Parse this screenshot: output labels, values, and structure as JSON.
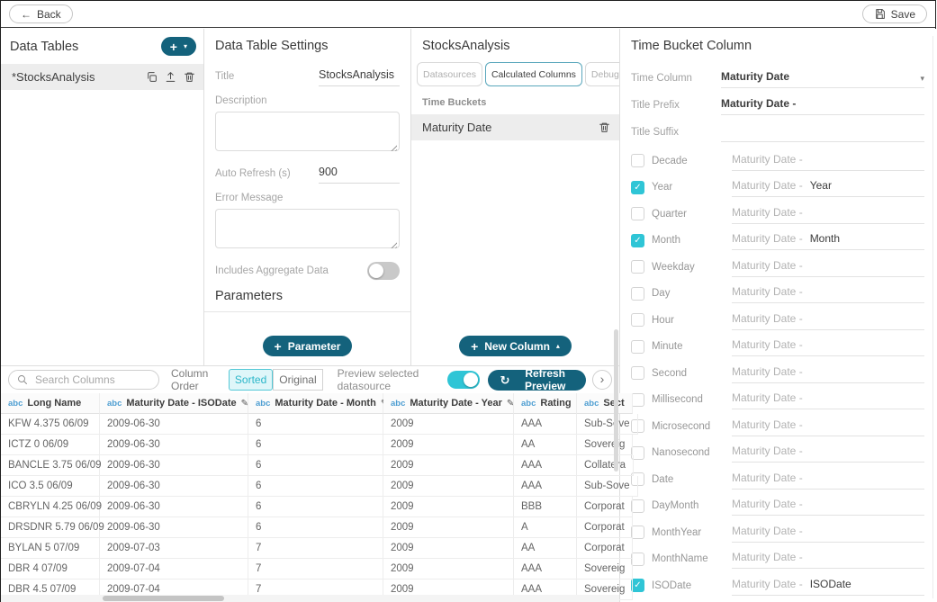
{
  "colors": {
    "accent_teal": "#14627c",
    "accent_cyan": "#2fc5d6",
    "active_tab_border": "#5aa7bc",
    "abc_blue": "#4e9ed2"
  },
  "icons": {
    "plus": "+",
    "caret_down": "▾",
    "caret_up": "▴",
    "back_arrow": "←",
    "chevron_right": "›",
    "refresh": "↻",
    "check": "✓",
    "pencil": "✎",
    "dropdown_caret": "▾"
  },
  "topbar": {
    "back_label": "Back",
    "save_label": "Save"
  },
  "data_tables": {
    "title": "Data Tables",
    "items": [
      {
        "name": "*StocksAnalysis"
      }
    ]
  },
  "settings": {
    "title": "Data Table Settings",
    "title_label": "Title",
    "title_value": "StocksAnalysis",
    "description_label": "Description",
    "description_value": "",
    "auto_refresh_label": "Auto Refresh (s)",
    "auto_refresh_value": "900",
    "error_label": "Error Message",
    "error_value": "",
    "aggregate_label": "Includes Aggregate Data",
    "aggregate_on": false,
    "parameters_title": "Parameters",
    "add_parameter_label": "Parameter"
  },
  "calc_panel": {
    "title": "StocksAnalysis",
    "tabs": [
      {
        "label": "Datasources",
        "active": false
      },
      {
        "label": "Calculated Columns",
        "active": true
      },
      {
        "label": "Debug",
        "active": false
      }
    ],
    "section_label": "Time Buckets",
    "items": [
      {
        "name": "Maturity Date"
      }
    ],
    "new_column_label": "New Column"
  },
  "time_bucket": {
    "title": "Time Bucket Column",
    "time_column_label": "Time Column",
    "time_column_value": "Maturity Date",
    "title_prefix_label": "Title Prefix",
    "title_prefix_value": "Maturity Date -",
    "title_suffix_label": "Title Suffix",
    "title_suffix_value": "",
    "field_prefix": "Maturity Date -",
    "buckets": [
      {
        "label": "Decade",
        "checked": false,
        "suffix": ""
      },
      {
        "label": "Year",
        "checked": true,
        "suffix": "Year"
      },
      {
        "label": "Quarter",
        "checked": false,
        "suffix": ""
      },
      {
        "label": "Month",
        "checked": true,
        "suffix": "Month"
      },
      {
        "label": "Weekday",
        "checked": false,
        "suffix": ""
      },
      {
        "label": "Day",
        "checked": false,
        "suffix": ""
      },
      {
        "label": "Hour",
        "checked": false,
        "suffix": ""
      },
      {
        "label": "Minute",
        "checked": false,
        "suffix": ""
      },
      {
        "label": "Second",
        "checked": false,
        "suffix": ""
      },
      {
        "label": "Millisecond",
        "checked": false,
        "suffix": ""
      },
      {
        "label": "Microsecond",
        "checked": false,
        "suffix": ""
      },
      {
        "label": "Nanosecond",
        "checked": false,
        "suffix": ""
      },
      {
        "label": "Date",
        "checked": false,
        "suffix": ""
      },
      {
        "label": "DayMonth",
        "checked": false,
        "suffix": ""
      },
      {
        "label": "MonthYear",
        "checked": false,
        "suffix": ""
      },
      {
        "label": "MonthName",
        "checked": false,
        "suffix": ""
      },
      {
        "label": "ISODate",
        "checked": true,
        "suffix": "ISODate"
      }
    ]
  },
  "preview": {
    "search_placeholder": "Search Columns",
    "column_order_label": "Column Order",
    "order_options": [
      {
        "label": "Sorted",
        "active": true
      },
      {
        "label": "Original",
        "active": false
      }
    ],
    "toggle_label": "Preview selected datasource",
    "toggle_on": true,
    "refresh_label": "Refresh Preview",
    "table": {
      "headers": [
        {
          "type": "abc",
          "label": "Long Name",
          "editable": false
        },
        {
          "type": "abc",
          "label": "Maturity Date - ISODate",
          "editable": true
        },
        {
          "type": "abc",
          "label": "Maturity Date - Month",
          "editable": true
        },
        {
          "type": "abc",
          "label": "Maturity Date - Year",
          "editable": true
        },
        {
          "type": "abc",
          "label": "Rating",
          "editable": false
        },
        {
          "type": "abc",
          "label": "Sect",
          "editable": false
        }
      ],
      "rows": [
        [
          "KFW 4.375 06/09",
          "2009-06-30",
          "6",
          "2009",
          "AAA",
          "Sub-Sove"
        ],
        [
          "ICTZ 0 06/09",
          "2009-06-30",
          "6",
          "2009",
          "AA",
          "Sovereig"
        ],
        [
          "BANCLE 3.75 06/09",
          "2009-06-30",
          "6",
          "2009",
          "AAA",
          "Collatera"
        ],
        [
          "ICO 3.5 06/09",
          "2009-06-30",
          "6",
          "2009",
          "AAA",
          "Sub-Sove"
        ],
        [
          "CBRYLN 4.25 06/09",
          "2009-06-30",
          "6",
          "2009",
          "BBB",
          "Corporat"
        ],
        [
          "DRSDNR 5.79 06/09",
          "2009-06-30",
          "6",
          "2009",
          "A",
          "Corporat"
        ],
        [
          "BYLAN 5 07/09",
          "2009-07-03",
          "7",
          "2009",
          "AA",
          "Corporat"
        ],
        [
          "DBR 4 07/09",
          "2009-07-04",
          "7",
          "2009",
          "AAA",
          "Sovereig"
        ],
        [
          "DBR 4.5 07/09",
          "2009-07-04",
          "7",
          "2009",
          "AAA",
          "Sovereig"
        ]
      ]
    }
  }
}
